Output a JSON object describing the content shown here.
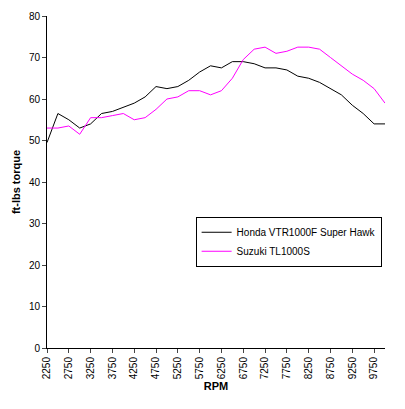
{
  "chart_data": {
    "type": "line",
    "x_label": "RPM",
    "y_label": "ft-lbs torque",
    "categories": [
      2250,
      null,
      2750,
      null,
      3250,
      null,
      3750,
      null,
      4250,
      null,
      4750,
      null,
      5250,
      null,
      5750,
      null,
      6250,
      null,
      6750,
      null,
      7250,
      null,
      7750,
      null,
      8250,
      null,
      8750,
      null,
      9250,
      null,
      9750,
      null
    ],
    "series": [
      {
        "name": "Honda VTR1000F Super Hawk",
        "color": "#000000",
        "values": [
          49.5,
          56.5,
          55,
          53,
          54,
          56.5,
          57,
          58,
          59,
          60.5,
          63,
          62.5,
          63,
          64.5,
          66.5,
          68,
          67.5,
          69,
          69,
          68.5,
          67.5,
          67.5,
          67,
          65.5,
          65,
          64,
          62.5,
          61,
          58.5,
          56.5,
          54,
          54
        ]
      },
      {
        "name": "Suzuki TL1000S",
        "color": "#ff00ff",
        "values": [
          53,
          53,
          53.5,
          51.5,
          55.5,
          55.5,
          56,
          56.5,
          55,
          55.5,
          57.5,
          60,
          60.5,
          62,
          62,
          61,
          62,
          65,
          69.5,
          72,
          72.5,
          71,
          71.5,
          72.5,
          72.5,
          72,
          70,
          68,
          66,
          64.5,
          62.5,
          59
        ]
      }
    ],
    "ylim": [
      0,
      80
    ],
    "yticks": [
      0,
      10,
      20,
      30,
      40,
      50,
      60,
      70,
      80
    ],
    "grid": false,
    "legend": "right"
  }
}
